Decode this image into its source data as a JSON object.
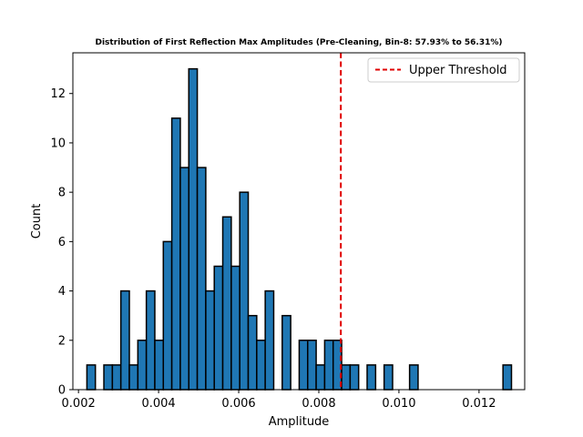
{
  "chart_data": {
    "type": "bar",
    "title": "Distribution of First Reflection Max Amplitudes (Pre-Cleaning, Bin-8: 57.93% to 56.31%)",
    "xlabel": "Amplitude",
    "ylabel": "Count",
    "xlim": [
      0.00186,
      0.01314
    ],
    "ylim": [
      0,
      13.65
    ],
    "xticks": [
      0.002,
      0.004,
      0.006,
      0.008,
      0.01,
      0.012
    ],
    "xtick_labels": [
      "0.002",
      "0.004",
      "0.006",
      "0.008",
      "0.010",
      "0.012"
    ],
    "yticks": [
      0,
      2,
      4,
      6,
      8,
      10,
      12
    ],
    "ytick_labels": [
      "0",
      "2",
      "4",
      "6",
      "8",
      "10",
      "12"
    ],
    "bin_start": 0.00221,
    "bin_width": 0.000212,
    "counts": [
      1,
      0,
      1,
      1,
      4,
      1,
      2,
      4,
      2,
      6,
      11,
      9,
      13,
      9,
      4,
      5,
      7,
      5,
      8,
      3,
      2,
      4,
      0,
      3,
      0,
      2,
      2,
      1,
      2,
      2,
      1,
      1,
      0,
      1,
      0,
      1,
      0,
      0,
      1,
      0,
      0,
      0,
      0,
      0,
      0,
      0,
      0,
      0,
      0,
      1
    ],
    "bar_color": "#1f77b4",
    "edge_color": "#000000",
    "threshold": {
      "name": "Upper Threshold",
      "x": 0.00855,
      "color": "#e00000",
      "style": "dashed"
    },
    "legend": {
      "placement": "top-right",
      "entries": [
        "Upper Threshold"
      ]
    },
    "grid": false
  }
}
